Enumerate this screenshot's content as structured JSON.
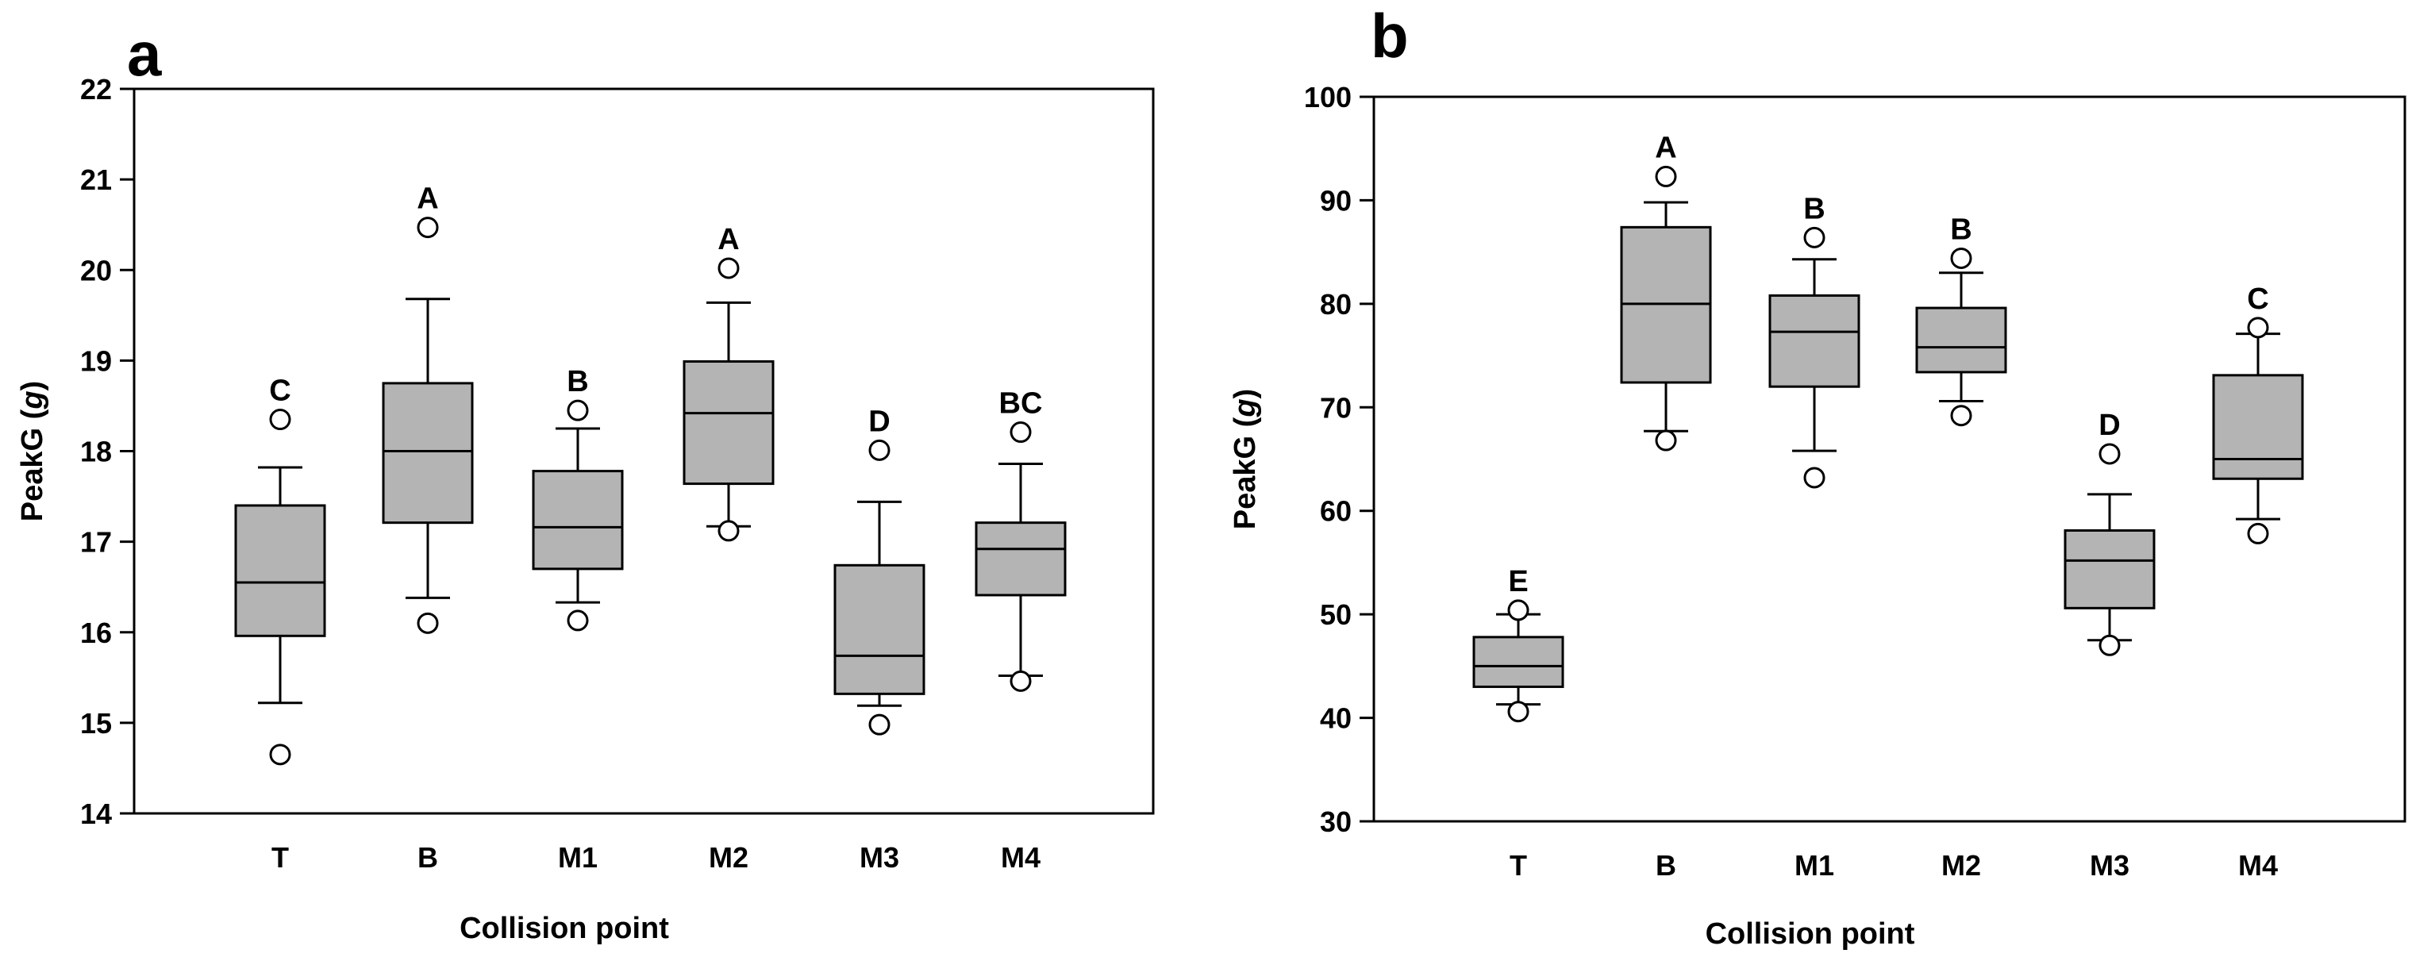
{
  "chart_data": [
    {
      "type": "box",
      "panel_label": "a",
      "xlabel": "Collision point",
      "ylabel": "PeakG",
      "ylabel_unit": "g",
      "ylim": [
        14,
        22
      ],
      "yticks": [
        14,
        15,
        16,
        17,
        18,
        19,
        20,
        21,
        22
      ],
      "categories": [
        "T",
        "B",
        "M1",
        "M2",
        "M3",
        "M4"
      ],
      "boxes": [
        {
          "category": "T",
          "whisker_low": 15.22,
          "q1": 15.96,
          "median": 16.55,
          "q3": 17.4,
          "whisker_high": 17.82,
          "outliers": [
            14.65,
            18.35
          ],
          "letter": "C"
        },
        {
          "category": "B",
          "whisker_low": 16.38,
          "q1": 17.21,
          "median": 18.0,
          "q3": 18.75,
          "whisker_high": 19.68,
          "outliers": [
            16.1,
            20.47
          ],
          "letter": "A"
        },
        {
          "category": "M1",
          "whisker_low": 16.33,
          "q1": 16.7,
          "median": 17.16,
          "q3": 17.78,
          "whisker_high": 18.25,
          "outliers": [
            16.13,
            18.45
          ],
          "letter": "B"
        },
        {
          "category": "M2",
          "whisker_low": 17.17,
          "q1": 17.64,
          "median": 18.42,
          "q3": 18.99,
          "whisker_high": 19.64,
          "outliers": [
            17.12,
            20.02
          ],
          "letter": "A"
        },
        {
          "category": "M3",
          "whisker_low": 15.19,
          "q1": 15.32,
          "median": 15.74,
          "q3": 16.74,
          "whisker_high": 17.44,
          "outliers": [
            14.98,
            18.01
          ],
          "letter": "D"
        },
        {
          "category": "M4",
          "whisker_low": 15.52,
          "q1": 16.41,
          "median": 16.92,
          "q3": 17.21,
          "whisker_high": 17.86,
          "outliers": [
            15.46,
            18.21
          ],
          "letter": "BC"
        }
      ]
    },
    {
      "type": "box",
      "panel_label": "b",
      "xlabel": "Collision point",
      "ylabel": "PeakG",
      "ylabel_unit": "g",
      "ylim": [
        30,
        100
      ],
      "yticks": [
        30,
        40,
        50,
        60,
        70,
        80,
        90,
        100
      ],
      "categories": [
        "T",
        "B",
        "M1",
        "M2",
        "M3",
        "M4"
      ],
      "boxes": [
        {
          "category": "T",
          "whisker_low": 41.3,
          "q1": 43.0,
          "median": 45.0,
          "q3": 47.8,
          "whisker_high": 50.0,
          "outliers": [
            40.6,
            50.4
          ],
          "letter": "E"
        },
        {
          "category": "B",
          "whisker_low": 67.7,
          "q1": 72.4,
          "median": 80.0,
          "q3": 87.4,
          "whisker_high": 89.8,
          "outliers": [
            66.8,
            92.3
          ],
          "letter": "A"
        },
        {
          "category": "M1",
          "whisker_low": 65.8,
          "q1": 72.0,
          "median": 77.3,
          "q3": 80.8,
          "whisker_high": 84.3,
          "outliers": [
            63.2,
            86.4
          ],
          "letter": "B"
        },
        {
          "category": "M2",
          "whisker_low": 70.6,
          "q1": 73.4,
          "median": 75.8,
          "q3": 79.6,
          "whisker_high": 83.0,
          "outliers": [
            69.2,
            84.4
          ],
          "letter": "B"
        },
        {
          "category": "M3",
          "whisker_low": 47.5,
          "q1": 50.6,
          "median": 55.2,
          "q3": 58.1,
          "whisker_high": 61.6,
          "outliers": [
            47.0,
            65.5
          ],
          "letter": "D"
        },
        {
          "category": "M4",
          "whisker_low": 59.2,
          "q1": 63.1,
          "median": 65.0,
          "q3": 73.1,
          "whisker_high": 77.1,
          "outliers": [
            57.8,
            77.7
          ],
          "letter": "C"
        }
      ]
    }
  ]
}
